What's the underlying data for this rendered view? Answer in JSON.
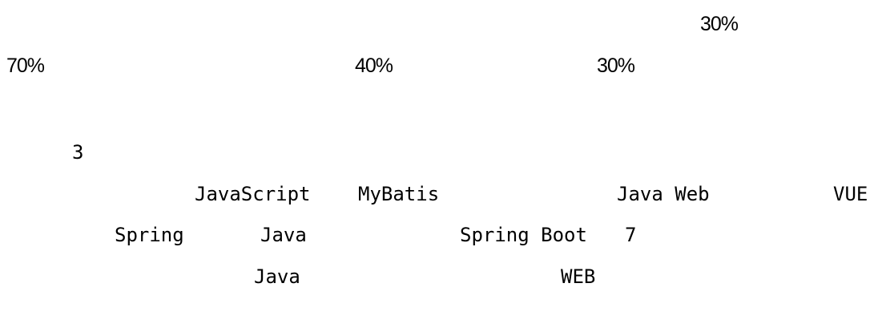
{
  "percent_top": "30%",
  "percent_row": [
    "70%",
    "40%",
    "30%"
  ],
  "number": "3",
  "lines": [
    [
      "JavaScript",
      "MyBatis",
      "Java Web",
      "VUE"
    ],
    [
      "Spring",
      "Java",
      "Spring Boot",
      "7"
    ],
    [
      "Java",
      "WEB"
    ]
  ]
}
